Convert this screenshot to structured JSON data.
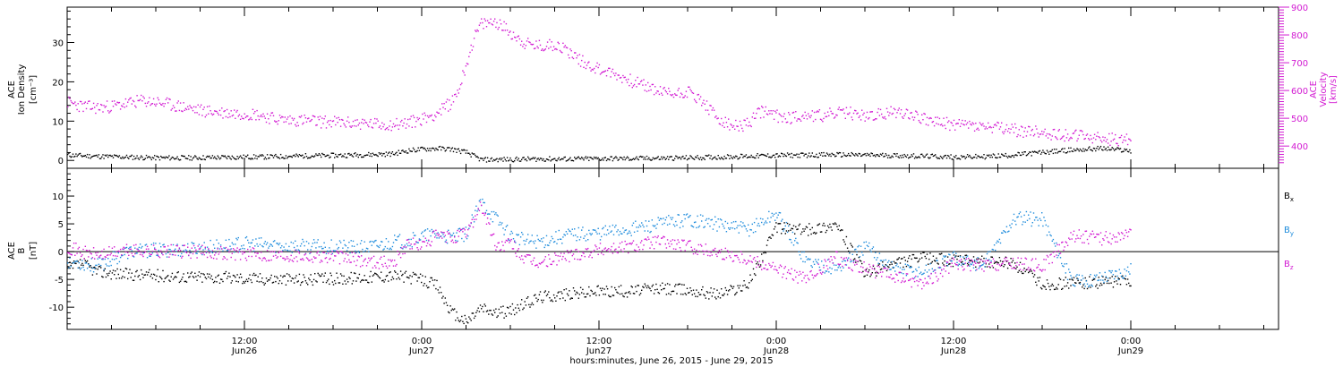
{
  "xaxis": {
    "title": "hours:minutes, June 26, 2015 - June 29, 2015",
    "major_ticks": [
      {
        "hours": 12,
        "time": "12:00",
        "date": "Jun26"
      },
      {
        "hours": 24,
        "time": "0:00",
        "date": "Jun27"
      },
      {
        "hours": 36,
        "time": "12:00",
        "date": "Jun27"
      },
      {
        "hours": 48,
        "time": "0:00",
        "date": "Jun28"
      },
      {
        "hours": 60,
        "time": "12:00",
        "date": "Jun28"
      },
      {
        "hours": 72,
        "time": "0:00",
        "date": "Jun29"
      }
    ]
  },
  "colors": {
    "black": "#000000",
    "magenta": "#d21ad2",
    "blue": "#1e8cdc"
  },
  "chart_data": [
    {
      "type": "scatter",
      "panel": "top",
      "x_unit": "hours since June 26, 2015 00:00",
      "xlim": [
        0,
        82
      ],
      "ylabel_left": [
        "ACE",
        "Ion Density",
        "[cm⁻³]"
      ],
      "ylabel_right": [
        "ACE",
        "Velocity",
        "[km/s]"
      ],
      "ylim_left": [
        -2,
        39
      ],
      "ylim_right": [
        320,
        900
      ],
      "yticks_left": [
        "0",
        "10",
        "20",
        "30"
      ],
      "yticks_right": [
        "400",
        "500",
        "600",
        "700",
        "800",
        "900"
      ],
      "series": [
        {
          "axis": "left",
          "color": "black",
          "x": [
            0,
            2,
            4,
            6,
            8,
            10,
            12,
            14,
            16,
            18,
            20,
            22,
            23,
            24,
            25,
            26,
            27,
            28,
            30,
            32,
            34,
            36,
            38,
            40,
            42,
            44,
            46,
            48,
            50,
            52,
            54,
            56,
            58,
            60,
            62,
            64,
            66,
            68,
            70,
            72
          ],
          "y": [
            1.5,
            1.2,
            1.0,
            0.8,
            0.8,
            0.9,
            1.0,
            1.1,
            1.3,
            1.4,
            1.6,
            1.8,
            2.6,
            3.0,
            3.2,
            3.0,
            2.2,
            0.3,
            0.4,
            0.5,
            0.5,
            0.6,
            0.6,
            0.7,
            0.8,
            1.0,
            1.2,
            1.4,
            1.5,
            1.6,
            1.5,
            1.4,
            1.2,
            1.0,
            1.1,
            1.5,
            2.2,
            2.8,
            3.2,
            2.6
          ]
        },
        {
          "axis": "right",
          "color": "magenta",
          "x": [
            0,
            1,
            2,
            3,
            4,
            5,
            6,
            7,
            8,
            9,
            10,
            11,
            12,
            13,
            14,
            15,
            16,
            17,
            18,
            19,
            20,
            21,
            22,
            23,
            24,
            25,
            26,
            26.5,
            27,
            27.5,
            28,
            29,
            30,
            31,
            32,
            33,
            34,
            35,
            36,
            37,
            38,
            39,
            40,
            41,
            42,
            43,
            44,
            45,
            46,
            47,
            48,
            49,
            50,
            51,
            52,
            53,
            54,
            55,
            56,
            57,
            58,
            59,
            60,
            61,
            62,
            63,
            64,
            65,
            66,
            67,
            68,
            69,
            70,
            71,
            72
          ],
          "y": [
            560,
            545,
            540,
            545,
            555,
            565,
            560,
            550,
            540,
            530,
            525,
            520,
            520,
            515,
            500,
            495,
            495,
            490,
            488,
            485,
            483,
            480,
            480,
            485,
            500,
            520,
            560,
            610,
            700,
            790,
            840,
            850,
            810,
            770,
            760,
            770,
            740,
            700,
            680,
            660,
            640,
            620,
            600,
            590,
            600,
            560,
            500,
            470,
            480,
            530,
            510,
            505,
            515,
            510,
            520,
            520,
            510,
            515,
            525,
            520,
            500,
            485,
            480,
            478,
            470,
            465,
            460,
            455,
            450,
            445,
            440,
            435,
            430,
            425,
            425
          ]
        }
      ]
    },
    {
      "type": "scatter",
      "panel": "bottom",
      "x_unit": "hours since June 26, 2015 00:00",
      "xlim": [
        0,
        82
      ],
      "ylabel_left": [
        "ACE",
        "B",
        "[nT]"
      ],
      "ylim": [
        -14,
        15
      ],
      "yticks": [
        "-10",
        "-5",
        "0",
        "5",
        "10"
      ],
      "zero_line": true,
      "series": [
        {
          "name": "Bx",
          "color": "black",
          "x": [
            0,
            1,
            2,
            4,
            6,
            8,
            10,
            12,
            14,
            16,
            18,
            20,
            22,
            23,
            24,
            25,
            26,
            27,
            28,
            29,
            30,
            32,
            34,
            36,
            38,
            40,
            42,
            44,
            46,
            48,
            50,
            52,
            54,
            56,
            58,
            60,
            62,
            64,
            66,
            68,
            70,
            72
          ],
          "y": [
            -3,
            -2,
            -3.5,
            -4,
            -4.2,
            -4.4,
            -4.5,
            -4.7,
            -4.8,
            -4.9,
            -4.8,
            -4.5,
            -4.2,
            -4.5,
            -5,
            -6,
            -11,
            -12.5,
            -10,
            -11,
            -10.5,
            -8,
            -7.5,
            -7,
            -7,
            -6.5,
            -6.8,
            -7.5,
            -6,
            4.5,
            4,
            5,
            -4,
            -2,
            -1,
            -1.5,
            -1.8,
            -2,
            -5.8,
            -5.5,
            -5.5,
            -5
          ]
        },
        {
          "name": "By",
          "color": "blue",
          "x": [
            0,
            1,
            2,
            4,
            6,
            8,
            10,
            12,
            14,
            16,
            18,
            20,
            21,
            22,
            23,
            24,
            25,
            26,
            27,
            28,
            29,
            30,
            31,
            32,
            34,
            36,
            38,
            40,
            42,
            44,
            46,
            48,
            50,
            52,
            54,
            56,
            58,
            60,
            62,
            64,
            66,
            68,
            70,
            72
          ],
          "y": [
            -1.5,
            -2,
            -2.5,
            0,
            0.4,
            0.5,
            1,
            1.5,
            1.2,
            1,
            1,
            0.8,
            1.2,
            1.8,
            2,
            2.8,
            3.2,
            2.5,
            3.4,
            9,
            6,
            3,
            2,
            2,
            3.2,
            3.5,
            4.2,
            5,
            6,
            5,
            4,
            7,
            -1.5,
            -3,
            1,
            -3,
            -3.5,
            -1,
            -2.5,
            6,
            6,
            -5.5,
            -4.5,
            -3
          ]
        },
        {
          "name": "Bz",
          "color": "magenta",
          "x": [
            0,
            1,
            2,
            4,
            6,
            8,
            10,
            12,
            14,
            16,
            18,
            20,
            22,
            23,
            24,
            25,
            26,
            27,
            28,
            29,
            30,
            31,
            32,
            34,
            36,
            38,
            40,
            42,
            44,
            46,
            48,
            50,
            52,
            54,
            56,
            58,
            60,
            62,
            64,
            66,
            68,
            70,
            72
          ],
          "y": [
            1,
            0,
            -0.5,
            0.3,
            0.2,
            0.1,
            0,
            -0.3,
            -0.5,
            -0.6,
            -0.8,
            -1.5,
            -2,
            1.5,
            1.2,
            3,
            2.5,
            3.5,
            8.5,
            1,
            1.5,
            -1.5,
            -2,
            -0.5,
            0.5,
            1,
            2,
            1,
            0,
            -1,
            -3,
            -5,
            -1,
            -3,
            -4.5,
            -5.5,
            -2,
            -2.5,
            -2,
            -2.5,
            3,
            2.5,
            3
          ]
        }
      ]
    }
  ]
}
